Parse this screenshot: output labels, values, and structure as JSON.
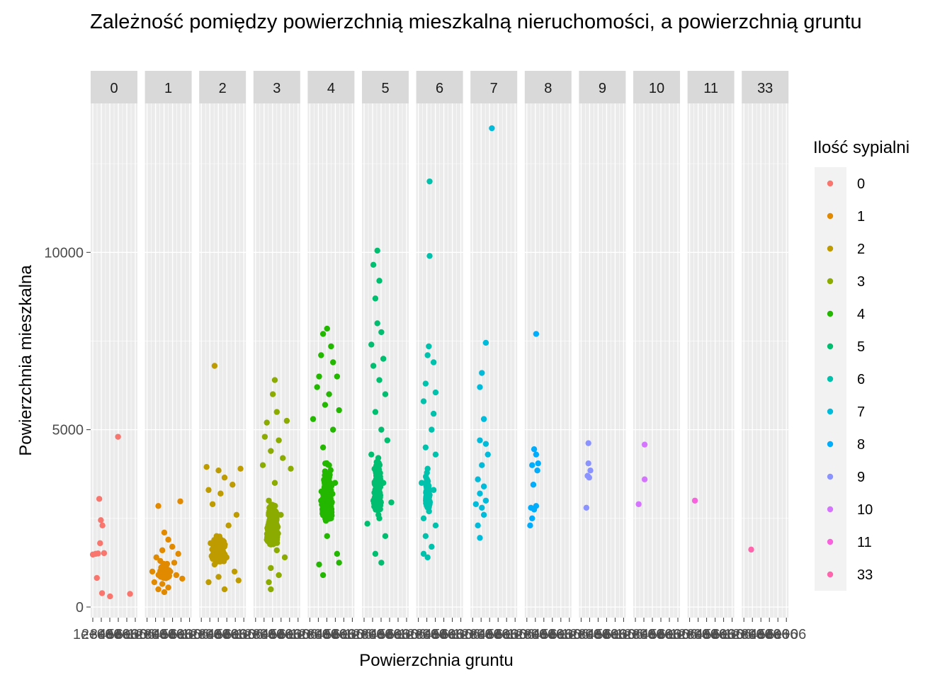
{
  "chart_data": {
    "type": "scatter",
    "title": "Zależność pomiędzy powierzchnią mieszkalną nieruchomości, a powierzchnią gruntu",
    "xlabel": "Powierzchnia gruntu",
    "ylabel": "Powierzchnia mieszkalna",
    "facet_by": "Ilość sypialni",
    "facets": [
      "0",
      "1",
      "2",
      "3",
      "4",
      "5",
      "6",
      "7",
      "8",
      "9",
      "10",
      "11",
      "33"
    ],
    "ylim": [
      -300,
      14200
    ],
    "y_ticks": [
      0,
      5000,
      10000
    ],
    "y_tick_labels": [
      "0",
      "5000",
      "10000"
    ],
    "x_tick_labels_overlapping": [
      "1e+06",
      "2e+06",
      "3e+06",
      "4e+06",
      "5e+06",
      "6e+06"
    ],
    "grid": true,
    "legend": {
      "title": "Ilość sypialni",
      "placement": "right",
      "entries": [
        {
          "label": "0",
          "color": "#F8766D"
        },
        {
          "label": "1",
          "color": "#E18A00"
        },
        {
          "label": "2",
          "color": "#BE9C00"
        },
        {
          "label": "3",
          "color": "#8CAB00"
        },
        {
          "label": "4",
          "color": "#24B700"
        },
        {
          "label": "5",
          "color": "#00BE70"
        },
        {
          "label": "6",
          "color": "#00C1AB"
        },
        {
          "label": "7",
          "color": "#00BBDA"
        },
        {
          "label": "8",
          "color": "#00ACFC"
        },
        {
          "label": "9",
          "color": "#8B93FF"
        },
        {
          "label": "10",
          "color": "#D575FE"
        },
        {
          "label": "11",
          "color": "#F962DD"
        },
        {
          "label": "33",
          "color": "#FF65AC"
        }
      ]
    },
    "series": [
      {
        "name": "0",
        "points": [
          [
            2000,
            1480
          ],
          [
            9000,
            1500
          ],
          [
            18000,
            3050
          ],
          [
            22000,
            2450
          ],
          [
            26000,
            2300
          ],
          [
            15000,
            1510
          ],
          [
            20000,
            1800
          ],
          [
            30000,
            1520
          ],
          [
            12000,
            820
          ],
          [
            25000,
            390
          ],
          [
            45000,
            300
          ],
          [
            65000,
            4800
          ],
          [
            95000,
            370
          ]
        ],
        "summary": {
          "min_y": 290,
          "max_y": 4810
        }
      },
      {
        "name": "1",
        "points": [
          [
            30000,
            2850
          ],
          [
            45000,
            2100
          ],
          [
            55000,
            1900
          ],
          [
            85000,
            2980
          ],
          [
            40000,
            1600
          ],
          [
            25000,
            1400
          ],
          [
            35000,
            1300
          ],
          [
            50000,
            1100
          ],
          [
            60000,
            1000
          ],
          [
            75000,
            900
          ],
          [
            90000,
            800
          ],
          [
            20000,
            700
          ],
          [
            40000,
            650
          ],
          [
            55000,
            550
          ],
          [
            30000,
            500
          ],
          [
            70000,
            1250
          ],
          [
            80000,
            1500
          ],
          [
            15000,
            1000
          ],
          [
            45000,
            420
          ],
          [
            65000,
            1700
          ]
        ],
        "density": "dense cluster x 0-100000, y 400-2200"
      },
      {
        "name": "2",
        "points": [
          [
            35000,
            6800
          ],
          [
            15000,
            3950
          ],
          [
            45000,
            3850
          ],
          [
            60000,
            3650
          ],
          [
            100000,
            3900
          ],
          [
            80000,
            3450
          ],
          [
            20000,
            3300
          ],
          [
            50000,
            3200
          ],
          [
            30000,
            2900
          ],
          [
            90000,
            2600
          ],
          [
            70000,
            2300
          ],
          [
            40000,
            2000
          ],
          [
            25000,
            1800
          ],
          [
            55000,
            1600
          ],
          [
            65000,
            1400
          ],
          [
            35000,
            1200
          ],
          [
            85000,
            1000
          ],
          [
            45000,
            850
          ],
          [
            20000,
            700
          ],
          [
            95000,
            750
          ],
          [
            60000,
            500
          ]
        ],
        "density": "dense cluster x 0-110000, y 500-3500"
      },
      {
        "name": "3",
        "points": [
          [
            50000,
            6400
          ],
          [
            45000,
            6000
          ],
          [
            30000,
            5200
          ],
          [
            55000,
            5500
          ],
          [
            80000,
            5250
          ],
          [
            25000,
            4800
          ],
          [
            60000,
            4700
          ],
          [
            40000,
            4400
          ],
          [
            70000,
            4200
          ],
          [
            20000,
            4000
          ],
          [
            90000,
            3900
          ],
          [
            50000,
            3500
          ],
          [
            35000,
            3000
          ],
          [
            65000,
            2600
          ],
          [
            45000,
            2200
          ],
          [
            30000,
            1900
          ],
          [
            55000,
            1600
          ],
          [
            75000,
            1400
          ],
          [
            40000,
            1100
          ],
          [
            60000,
            900
          ],
          [
            35000,
            700
          ],
          [
            40000,
            500
          ]
        ],
        "density": "dense cluster x 0-110000, y 500-5000"
      },
      {
        "name": "4",
        "points": [
          [
            45000,
            7850
          ],
          [
            35000,
            7700
          ],
          [
            55000,
            7350
          ],
          [
            30000,
            7100
          ],
          [
            60000,
            6900
          ],
          [
            25000,
            6500
          ],
          [
            70000,
            6500
          ],
          [
            20000,
            6200
          ],
          [
            50000,
            6000
          ],
          [
            40000,
            5700
          ],
          [
            75000,
            5550
          ],
          [
            10000,
            5300
          ],
          [
            60000,
            5000
          ],
          [
            35000,
            4500
          ],
          [
            50000,
            4000
          ],
          [
            65000,
            3500
          ],
          [
            30000,
            3000
          ],
          [
            55000,
            2500
          ],
          [
            45000,
            2000
          ],
          [
            70000,
            1500
          ],
          [
            25000,
            1200
          ],
          [
            35000,
            900
          ],
          [
            75000,
            1250
          ]
        ],
        "density": "dense cluster x 0-110000, y 800-7900"
      },
      {
        "name": "5",
        "points": [
          [
            35000,
            10050
          ],
          [
            25000,
            9650
          ],
          [
            40000,
            9200
          ],
          [
            30000,
            8700
          ],
          [
            35000,
            8000
          ],
          [
            45000,
            7750
          ],
          [
            20000,
            7400
          ],
          [
            50000,
            7000
          ],
          [
            25000,
            6800
          ],
          [
            40000,
            6400
          ],
          [
            55000,
            6000
          ],
          [
            30000,
            5500
          ],
          [
            45000,
            5000
          ],
          [
            60000,
            4700
          ],
          [
            20000,
            4300
          ],
          [
            35000,
            4000
          ],
          [
            50000,
            3500
          ],
          [
            25000,
            3000
          ],
          [
            40000,
            2500
          ],
          [
            55000,
            2000
          ],
          [
            30000,
            1500
          ],
          [
            45000,
            1250
          ],
          [
            10000,
            2350
          ],
          [
            70000,
            2950
          ]
        ],
        "density": "dense cluster x 0-110000, y 1100-10100"
      },
      {
        "name": "6",
        "points": [
          [
            30000,
            12000
          ],
          [
            30000,
            9900
          ],
          [
            28000,
            7350
          ],
          [
            25000,
            7100
          ],
          [
            40000,
            6900
          ],
          [
            20000,
            6300
          ],
          [
            45000,
            6050
          ],
          [
            15000,
            5800
          ],
          [
            40000,
            5450
          ],
          [
            35000,
            5000
          ],
          [
            20000,
            4500
          ],
          [
            45000,
            4300
          ],
          [
            25000,
            3900
          ],
          [
            10000,
            3500
          ],
          [
            40000,
            3300
          ],
          [
            30000,
            2900
          ],
          [
            15000,
            2500
          ],
          [
            45000,
            2300
          ],
          [
            20000,
            2000
          ],
          [
            35000,
            1700
          ],
          [
            25000,
            1400
          ],
          [
            15000,
            1500
          ]
        ],
        "density": "cluster x 0-60000, y 1300-7500"
      },
      {
        "name": "7",
        "points": [
          [
            50000,
            13500
          ],
          [
            35000,
            7450
          ],
          [
            25000,
            6600
          ],
          [
            20000,
            6200
          ],
          [
            30000,
            5300
          ],
          [
            20000,
            4700
          ],
          [
            35000,
            4600
          ],
          [
            40000,
            4300
          ],
          [
            25000,
            4000
          ],
          [
            15000,
            3600
          ],
          [
            30000,
            3400
          ],
          [
            20000,
            3200
          ],
          [
            35000,
            3000
          ],
          [
            10000,
            2900
          ],
          [
            25000,
            2800
          ],
          [
            30000,
            2600
          ],
          [
            15000,
            2300
          ],
          [
            20000,
            1950
          ]
        ],
        "summary": {
          "min_y": 1950,
          "max_y": 13550
        }
      },
      {
        "name": "8",
        "points": [
          [
            25000,
            7700
          ],
          [
            20000,
            4450
          ],
          [
            25000,
            4300
          ],
          [
            30000,
            4050
          ],
          [
            15000,
            4000
          ],
          [
            28000,
            3850
          ],
          [
            18000,
            3450
          ],
          [
            12000,
            2800
          ],
          [
            20000,
            2750
          ],
          [
            25000,
            2850
          ],
          [
            10000,
            2300
          ],
          [
            15000,
            2500
          ]
        ],
        "summary": {
          "min_y": 2300,
          "max_y": 7720
        }
      },
      {
        "name": "9",
        "points": [
          [
            20000,
            4620
          ],
          [
            20000,
            4050
          ],
          [
            25000,
            3850
          ],
          [
            18000,
            3700
          ],
          [
            22000,
            3650
          ],
          [
            15000,
            2800
          ]
        ],
        "summary": {
          "min_y": 2800,
          "max_y": 4620
        }
      },
      {
        "name": "10",
        "points": [
          [
            25000,
            4580
          ],
          [
            25000,
            3600
          ],
          [
            10000,
            2900
          ]
        ],
        "summary": {
          "min_y": 2900,
          "max_y": 4580
        }
      },
      {
        "name": "11",
        "points": [
          [
            15000,
            3000
          ]
        ],
        "summary": {
          "min_y": 3000,
          "max_y": 3000
        }
      },
      {
        "name": "33",
        "points": [
          [
            20000,
            1620
          ]
        ],
        "summary": {
          "min_y": 1620,
          "max_y": 1620
        }
      }
    ]
  }
}
